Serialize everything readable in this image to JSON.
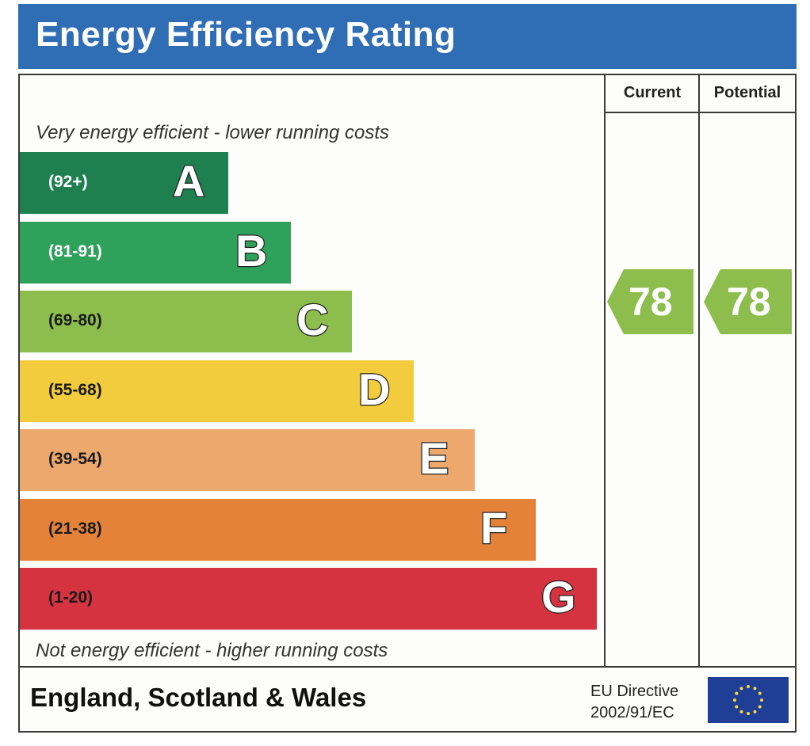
{
  "title": "Energy Efficiency Rating",
  "columns": {
    "current": "Current",
    "potential": "Potential"
  },
  "top_note": "Very energy efficient - lower running costs",
  "bottom_note": "Not energy efficient - higher running costs",
  "footer": {
    "country": "England, Scotland & Wales",
    "directive_line1": "EU Directive",
    "directive_line2": "2002/91/EC"
  },
  "colors": {
    "header": "#2f6db5",
    "rating_arrow": "#8dbd4c",
    "eu_flag": "#1f3e96",
    "eu_star": "#ffd83a"
  },
  "chart_data": {
    "type": "bar",
    "title": "Energy Efficiency Rating",
    "bands": [
      {
        "letter": "A",
        "range": "(92+)",
        "color": "#1e7f4f"
      },
      {
        "letter": "B",
        "range": "(81-91)",
        "color": "#2ea15a"
      },
      {
        "letter": "C",
        "range": "(69-80)",
        "color": "#8dbd4c"
      },
      {
        "letter": "D",
        "range": "(55-68)",
        "color": "#f2cc3c"
      },
      {
        "letter": "E",
        "range": "(39-54)",
        "color": "#eda86e"
      },
      {
        "letter": "F",
        "range": "(21-38)",
        "color": "#e5823a"
      },
      {
        "letter": "G",
        "range": "(1-20)",
        "color": "#d63340"
      }
    ],
    "current": 78,
    "potential": 78
  }
}
